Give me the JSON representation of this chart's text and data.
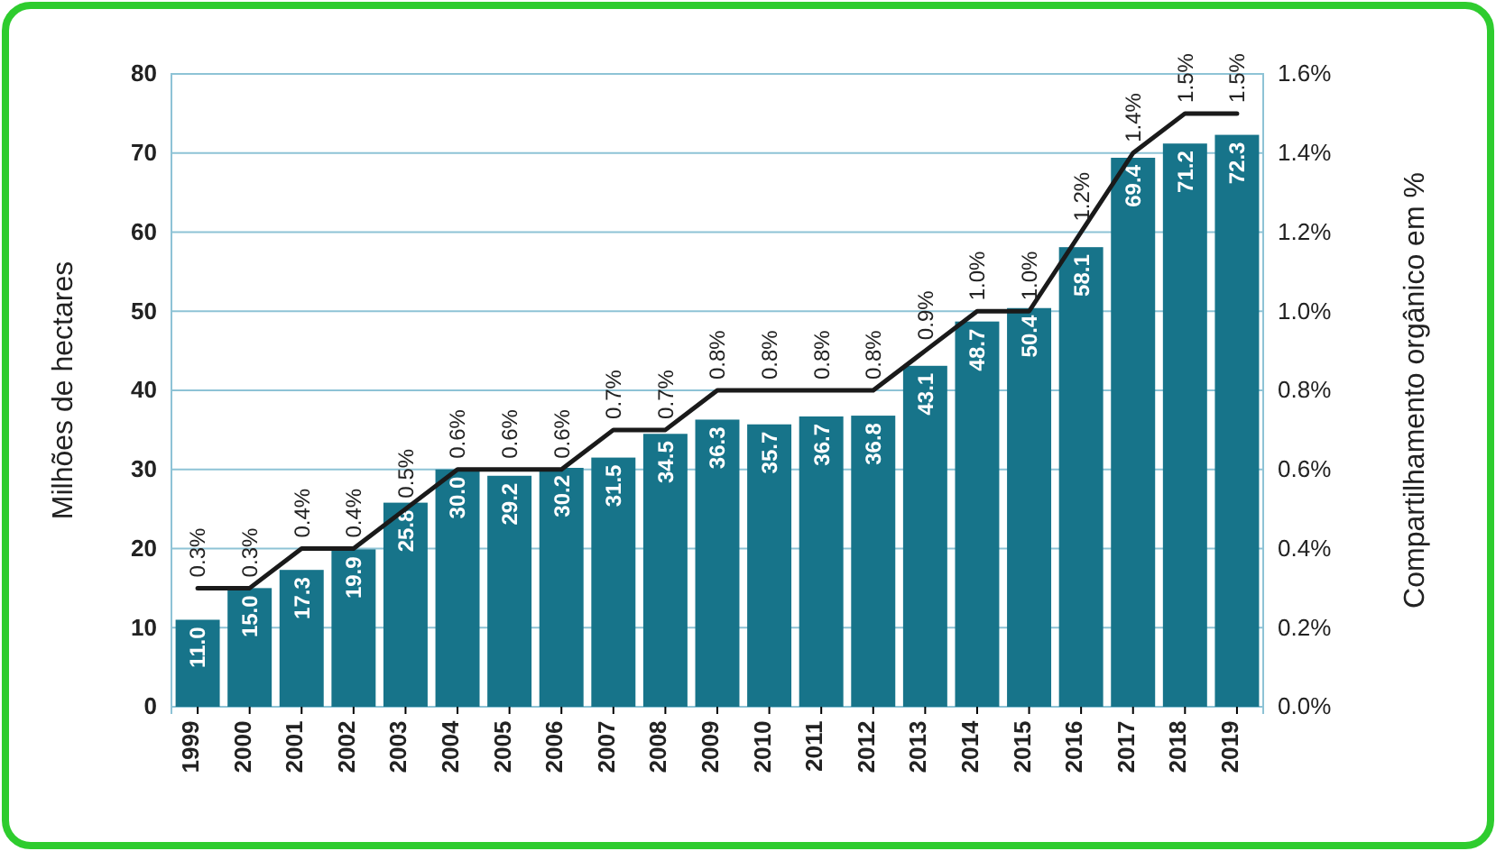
{
  "chart_data": {
    "type": "bar",
    "ylabel": "Milhões de hectares",
    "y2label": "Compartilhamento orgânico em %",
    "categories": [
      "1999",
      "2000",
      "2001",
      "2002",
      "2003",
      "2004",
      "2005",
      "2006",
      "2007",
      "2008",
      "2009",
      "2010",
      "2011",
      "2012",
      "2013",
      "2014",
      "2015",
      "2016",
      "2017",
      "2018",
      "2019"
    ],
    "series": [
      {
        "color": "#17748a",
        "values": [
          11.0,
          15.0,
          17.3,
          19.9,
          25.8,
          30.0,
          29.2,
          30.2,
          31.5,
          34.5,
          36.3,
          35.7,
          36.7,
          36.8,
          43.1,
          48.7,
          50.4,
          58.1,
          69.4,
          71.2,
          72.3
        ],
        "value_labels": [
          "11.0",
          "15.0",
          "17.3",
          "19.9",
          "25.8",
          "30.0",
          "29.2",
          "30.2",
          "31.5",
          "34.5",
          "36.3",
          "35.7",
          "36.7",
          "36.8",
          "43.1",
          "48.7",
          "50.4",
          "58.1",
          "69.4",
          "71.2",
          "72.3"
        ]
      },
      {
        "type": "line",
        "axis": "y2",
        "color": "#1a1a1a",
        "values": [
          0.3,
          0.3,
          0.4,
          0.4,
          0.5,
          0.6,
          0.6,
          0.6,
          0.7,
          0.7,
          0.8,
          0.8,
          0.8,
          0.8,
          0.9,
          1.0,
          1.0,
          1.2,
          1.4,
          1.5,
          1.5
        ],
        "value_labels": [
          "0.3%",
          "0.3%",
          "0.4%",
          "0.4%",
          "0.5%",
          "0.6%",
          "0.6%",
          "0.6%",
          "0.7%",
          "0.7%",
          "0.8%",
          "0.8%",
          "0.8%",
          "0.8%",
          "0.9%",
          "1.0%",
          "1.0%",
          "1.2%",
          "1.4%",
          "1.5%",
          "1.5%"
        ]
      }
    ],
    "ylim": [
      0,
      80
    ],
    "yticks": [
      0,
      10,
      20,
      30,
      40,
      50,
      60,
      70,
      80
    ],
    "y2lim": [
      0,
      1.6
    ],
    "y2ticks": [
      {
        "value": 0,
        "label": "0.0%"
      },
      {
        "value": 0.2,
        "label": "0.2%"
      },
      {
        "value": 0.4,
        "label": "0.4%"
      },
      {
        "value": 0.6,
        "label": "0.6%"
      },
      {
        "value": 0.8,
        "label": "0.8%"
      },
      {
        "value": 1.0,
        "label": "1.0%"
      },
      {
        "value": 1.2,
        "label": "1.2%"
      },
      {
        "value": 1.4,
        "label": "1.4%"
      },
      {
        "value": 1.6,
        "label": "1.6%"
      }
    ],
    "grid": "y"
  }
}
